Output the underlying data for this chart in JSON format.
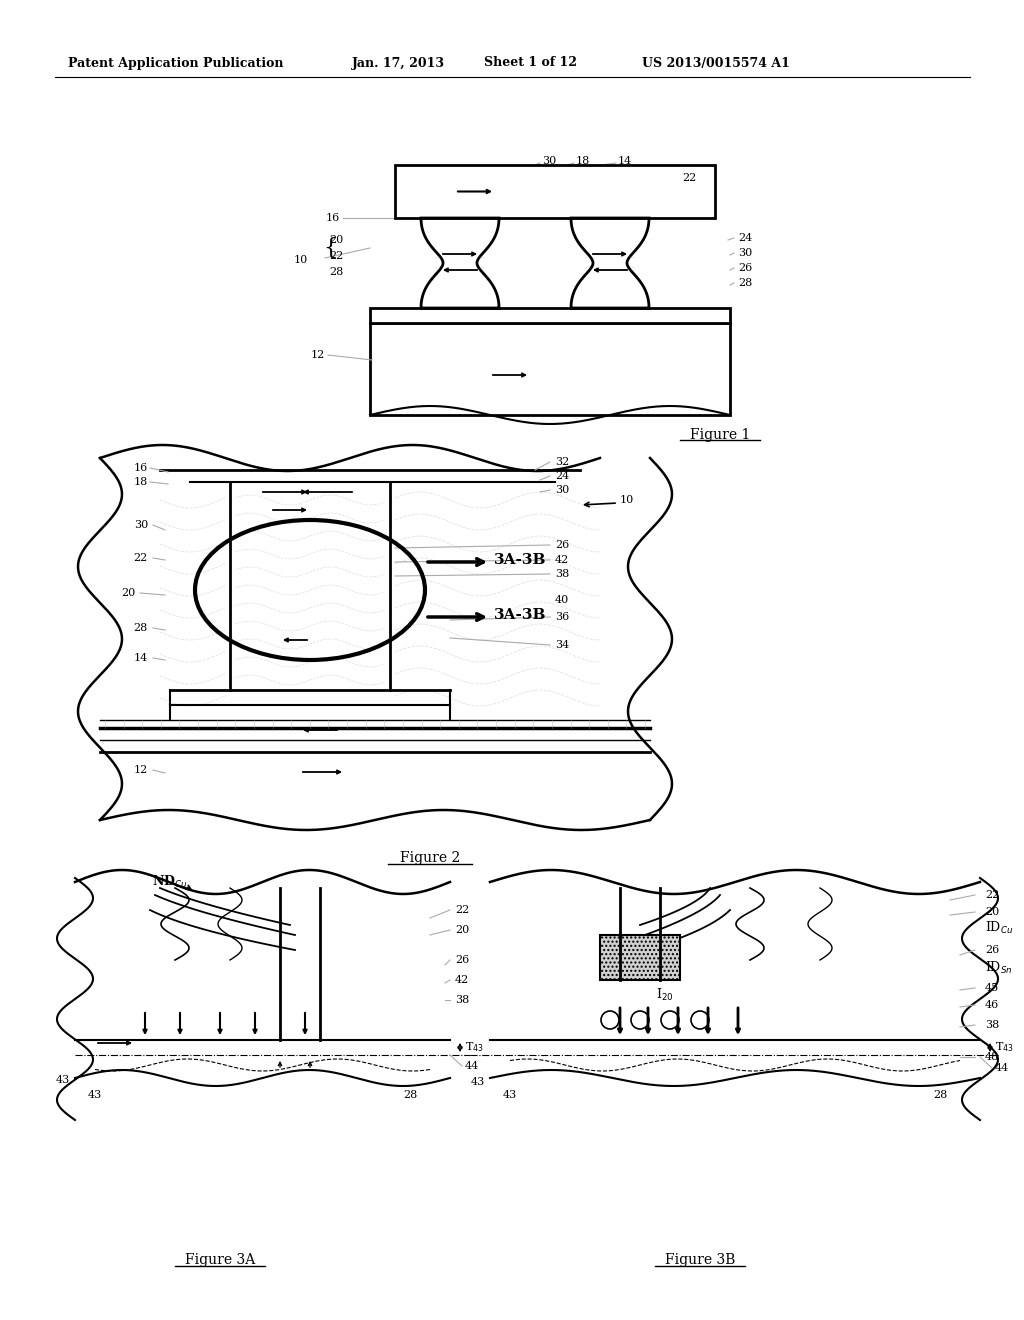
{
  "header_left": "Patent Application Publication",
  "header_date": "Jan. 17, 2013",
  "header_sheet": "Sheet 1 of 12",
  "header_patent": "US 2013/0015574 A1",
  "fig1_title": "Figure 1",
  "fig2_title": "Figure 2",
  "fig3a_title": "Figure 3A",
  "fig3b_title": "Figure 3B",
  "bg": "#ffffff",
  "black": "#000000",
  "gray": "#aaaaaa",
  "lgray": "#cccccc"
}
